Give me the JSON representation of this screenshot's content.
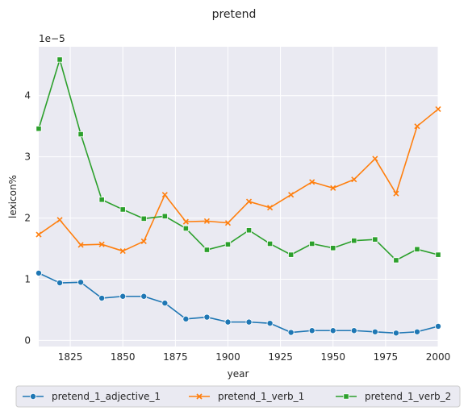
{
  "chart_data": {
    "type": "line",
    "title": "pretend",
    "xlabel": "year",
    "ylabel": "lexicon%",
    "y_scale_label": "1e−5",
    "xlim": [
      1810,
      2000
    ],
    "ylim": [
      -0.1,
      4.8
    ],
    "x_ticks": [
      1825,
      1850,
      1875,
      1900,
      1925,
      1950,
      1975,
      2000
    ],
    "y_ticks": [
      0,
      1,
      2,
      3,
      4
    ],
    "grid": true,
    "legend_position": "bottom",
    "x": [
      1810,
      1820,
      1830,
      1840,
      1850,
      1860,
      1870,
      1880,
      1890,
      1900,
      1910,
      1920,
      1930,
      1940,
      1950,
      1960,
      1970,
      1980,
      1990,
      2000
    ],
    "series": [
      {
        "name": "pretend_1_adjective_1",
        "color": "#1f77b4",
        "marker": "circle",
        "values": [
          1.1,
          0.94,
          0.95,
          0.69,
          0.72,
          0.72,
          0.61,
          0.35,
          0.38,
          0.3,
          0.3,
          0.28,
          0.13,
          0.16,
          0.16,
          0.16,
          0.14,
          0.12,
          0.14,
          0.23
        ]
      },
      {
        "name": "pretend_1_verb_1",
        "color": "#ff7f0e",
        "marker": "x",
        "values": [
          1.73,
          1.97,
          1.56,
          1.57,
          1.46,
          1.62,
          2.38,
          1.94,
          1.95,
          1.92,
          2.27,
          2.17,
          2.38,
          2.59,
          2.49,
          2.63,
          2.97,
          2.4,
          3.5,
          3.78
        ]
      },
      {
        "name": "pretend_1_verb_2",
        "color": "#2ca02c",
        "marker": "square",
        "values": [
          3.46,
          4.59,
          3.37,
          2.3,
          2.14,
          1.99,
          2.03,
          1.83,
          1.48,
          1.57,
          1.8,
          1.58,
          1.4,
          1.58,
          1.51,
          1.63,
          1.65,
          1.31,
          1.49,
          1.4
        ]
      }
    ]
  }
}
